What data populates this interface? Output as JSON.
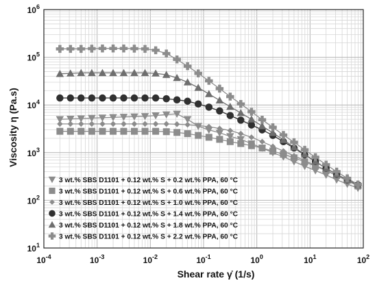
{
  "chart_data": {
    "type": "scatter",
    "title": "",
    "xlabel": "Shear rate γ̇  (1/s)",
    "ylabel": "Viscosity  η  (Pa.s)",
    "x_scale": "log",
    "y_scale": "log",
    "xlim": [
      0.0001,
      100
    ],
    "ylim": [
      10,
      1000000
    ],
    "x_ticks": [
      {
        "label_base": "10",
        "label_exp": "-4",
        "value": 0.0001
      },
      {
        "label_base": "10",
        "label_exp": "-3",
        "value": 0.001
      },
      {
        "label_base": "10",
        "label_exp": "-2",
        "value": 0.01
      },
      {
        "label_base": "10",
        "label_exp": "-1",
        "value": 0.1
      },
      {
        "label_base": "10",
        "label_exp": "0",
        "value": 1
      },
      {
        "label_base": "10",
        "label_exp": "1",
        "value": 10
      },
      {
        "label_base": "10",
        "label_exp": "2",
        "value": 100
      }
    ],
    "y_ticks": [
      {
        "label_base": "10",
        "label_exp": "1",
        "value": 10
      },
      {
        "label_base": "10",
        "label_exp": "2",
        "value": 100
      },
      {
        "label_base": "10",
        "label_exp": "3",
        "value": 1000
      },
      {
        "label_base": "10",
        "label_exp": "4",
        "value": 10000
      },
      {
        "label_base": "10",
        "label_exp": "5",
        "value": 100000
      },
      {
        "label_base": "10",
        "label_exp": "6",
        "value": 1000000
      }
    ],
    "grid": "major and minor, both axes",
    "legend_position": "lower-left",
    "x": [
      0.0002,
      0.000316,
      0.0005,
      0.000794,
      0.00126,
      0.002,
      0.00316,
      0.005,
      0.00794,
      0.0126,
      0.02,
      0.0316,
      0.05,
      0.0794,
      0.126,
      0.2,
      0.316,
      0.5,
      0.794,
      1.26,
      2,
      3.16,
      5,
      7.94,
      12.6,
      20,
      31.6,
      50,
      79.4
    ],
    "series": [
      {
        "name": "3 wt.% SBS D1101 + 0.12 wt.% S + 0.2 wt.% PPA, 60 °C",
        "marker": "triangle-down",
        "color": "#8c8c8c",
        "values": [
          5000,
          5100,
          5200,
          5300,
          5400,
          5500,
          5600,
          5700,
          5800,
          6000,
          6300,
          6500,
          5000,
          3600,
          3000,
          2600,
          2200,
          1900,
          1550,
          1250,
          1000,
          820,
          650,
          520,
          420,
          340,
          270,
          220,
          180
        ]
      },
      {
        "name": "3 wt.% SBS D1101 + 0.12 wt.% S + 0.6 wt.% PPA, 60 °C",
        "marker": "square",
        "color": "#8c8c8c",
        "values": [
          2800,
          2800,
          2800,
          2800,
          2800,
          2800,
          2800,
          2800,
          2800,
          2800,
          2750,
          2650,
          2500,
          2300,
          2100,
          1900,
          1700,
          1550,
          1400,
          1250,
          1080,
          920,
          780,
          640,
          520,
          420,
          330,
          260,
          200
        ]
      },
      {
        "name": "3 wt.% SBS D1101 + 0.12 wt.% S + 1.0 wt.% PPA, 60 °C",
        "marker": "diamond",
        "color": "#8c8c8c",
        "values": [
          4000,
          4000,
          4000,
          4000,
          4000,
          4000,
          4000,
          4000,
          4000,
          4000,
          4000,
          3950,
          3850,
          3700,
          3500,
          3200,
          2900,
          2500,
          2100,
          1700,
          1350,
          1080,
          860,
          680,
          540,
          430,
          330,
          260,
          200
        ]
      },
      {
        "name": "3 wt.% SBS D1101 + 0.12 wt.% S + 1.4 wt.% PPA, 60 °C",
        "marker": "circle",
        "color": "#303030",
        "values": [
          14000,
          14000,
          14000,
          14000,
          14000,
          14000,
          14000,
          14000,
          14000,
          14000,
          13500,
          12800,
          12000,
          10500,
          9000,
          7500,
          6000,
          4800,
          3800,
          3000,
          2300,
          1700,
          1250,
          900,
          650,
          470,
          350,
          270,
          210
        ]
      },
      {
        "name": "3 wt.% SBS D1101 + 0.12 wt.% S + 1.8 wt.% PPA, 60 °C",
        "marker": "triangle-up",
        "color": "#6e6e6e",
        "values": [
          45000,
          46000,
          47000,
          47000,
          47000,
          47000,
          47000,
          47000,
          47000,
          46000,
          43000,
          37000,
          30000,
          23000,
          17000,
          12500,
          9200,
          6800,
          5000,
          3600,
          2600,
          1850,
          1300,
          920,
          650,
          470,
          350,
          270,
          210
        ]
      },
      {
        "name": "3 wt.% SBS D1101 + 0.12 wt.% S + 2.2 wt.% PPA, 60 °C",
        "marker": "plus",
        "color": "#8c8c8c",
        "values": [
          150000,
          150000,
          150000,
          152000,
          153000,
          153000,
          153000,
          152000,
          150000,
          140000,
          120000,
          90000,
          65000,
          46000,
          32000,
          22000,
          15000,
          10500,
          7200,
          4900,
          3400,
          2350,
          1650,
          1150,
          800,
          560,
          400,
          290,
          215
        ]
      }
    ]
  }
}
